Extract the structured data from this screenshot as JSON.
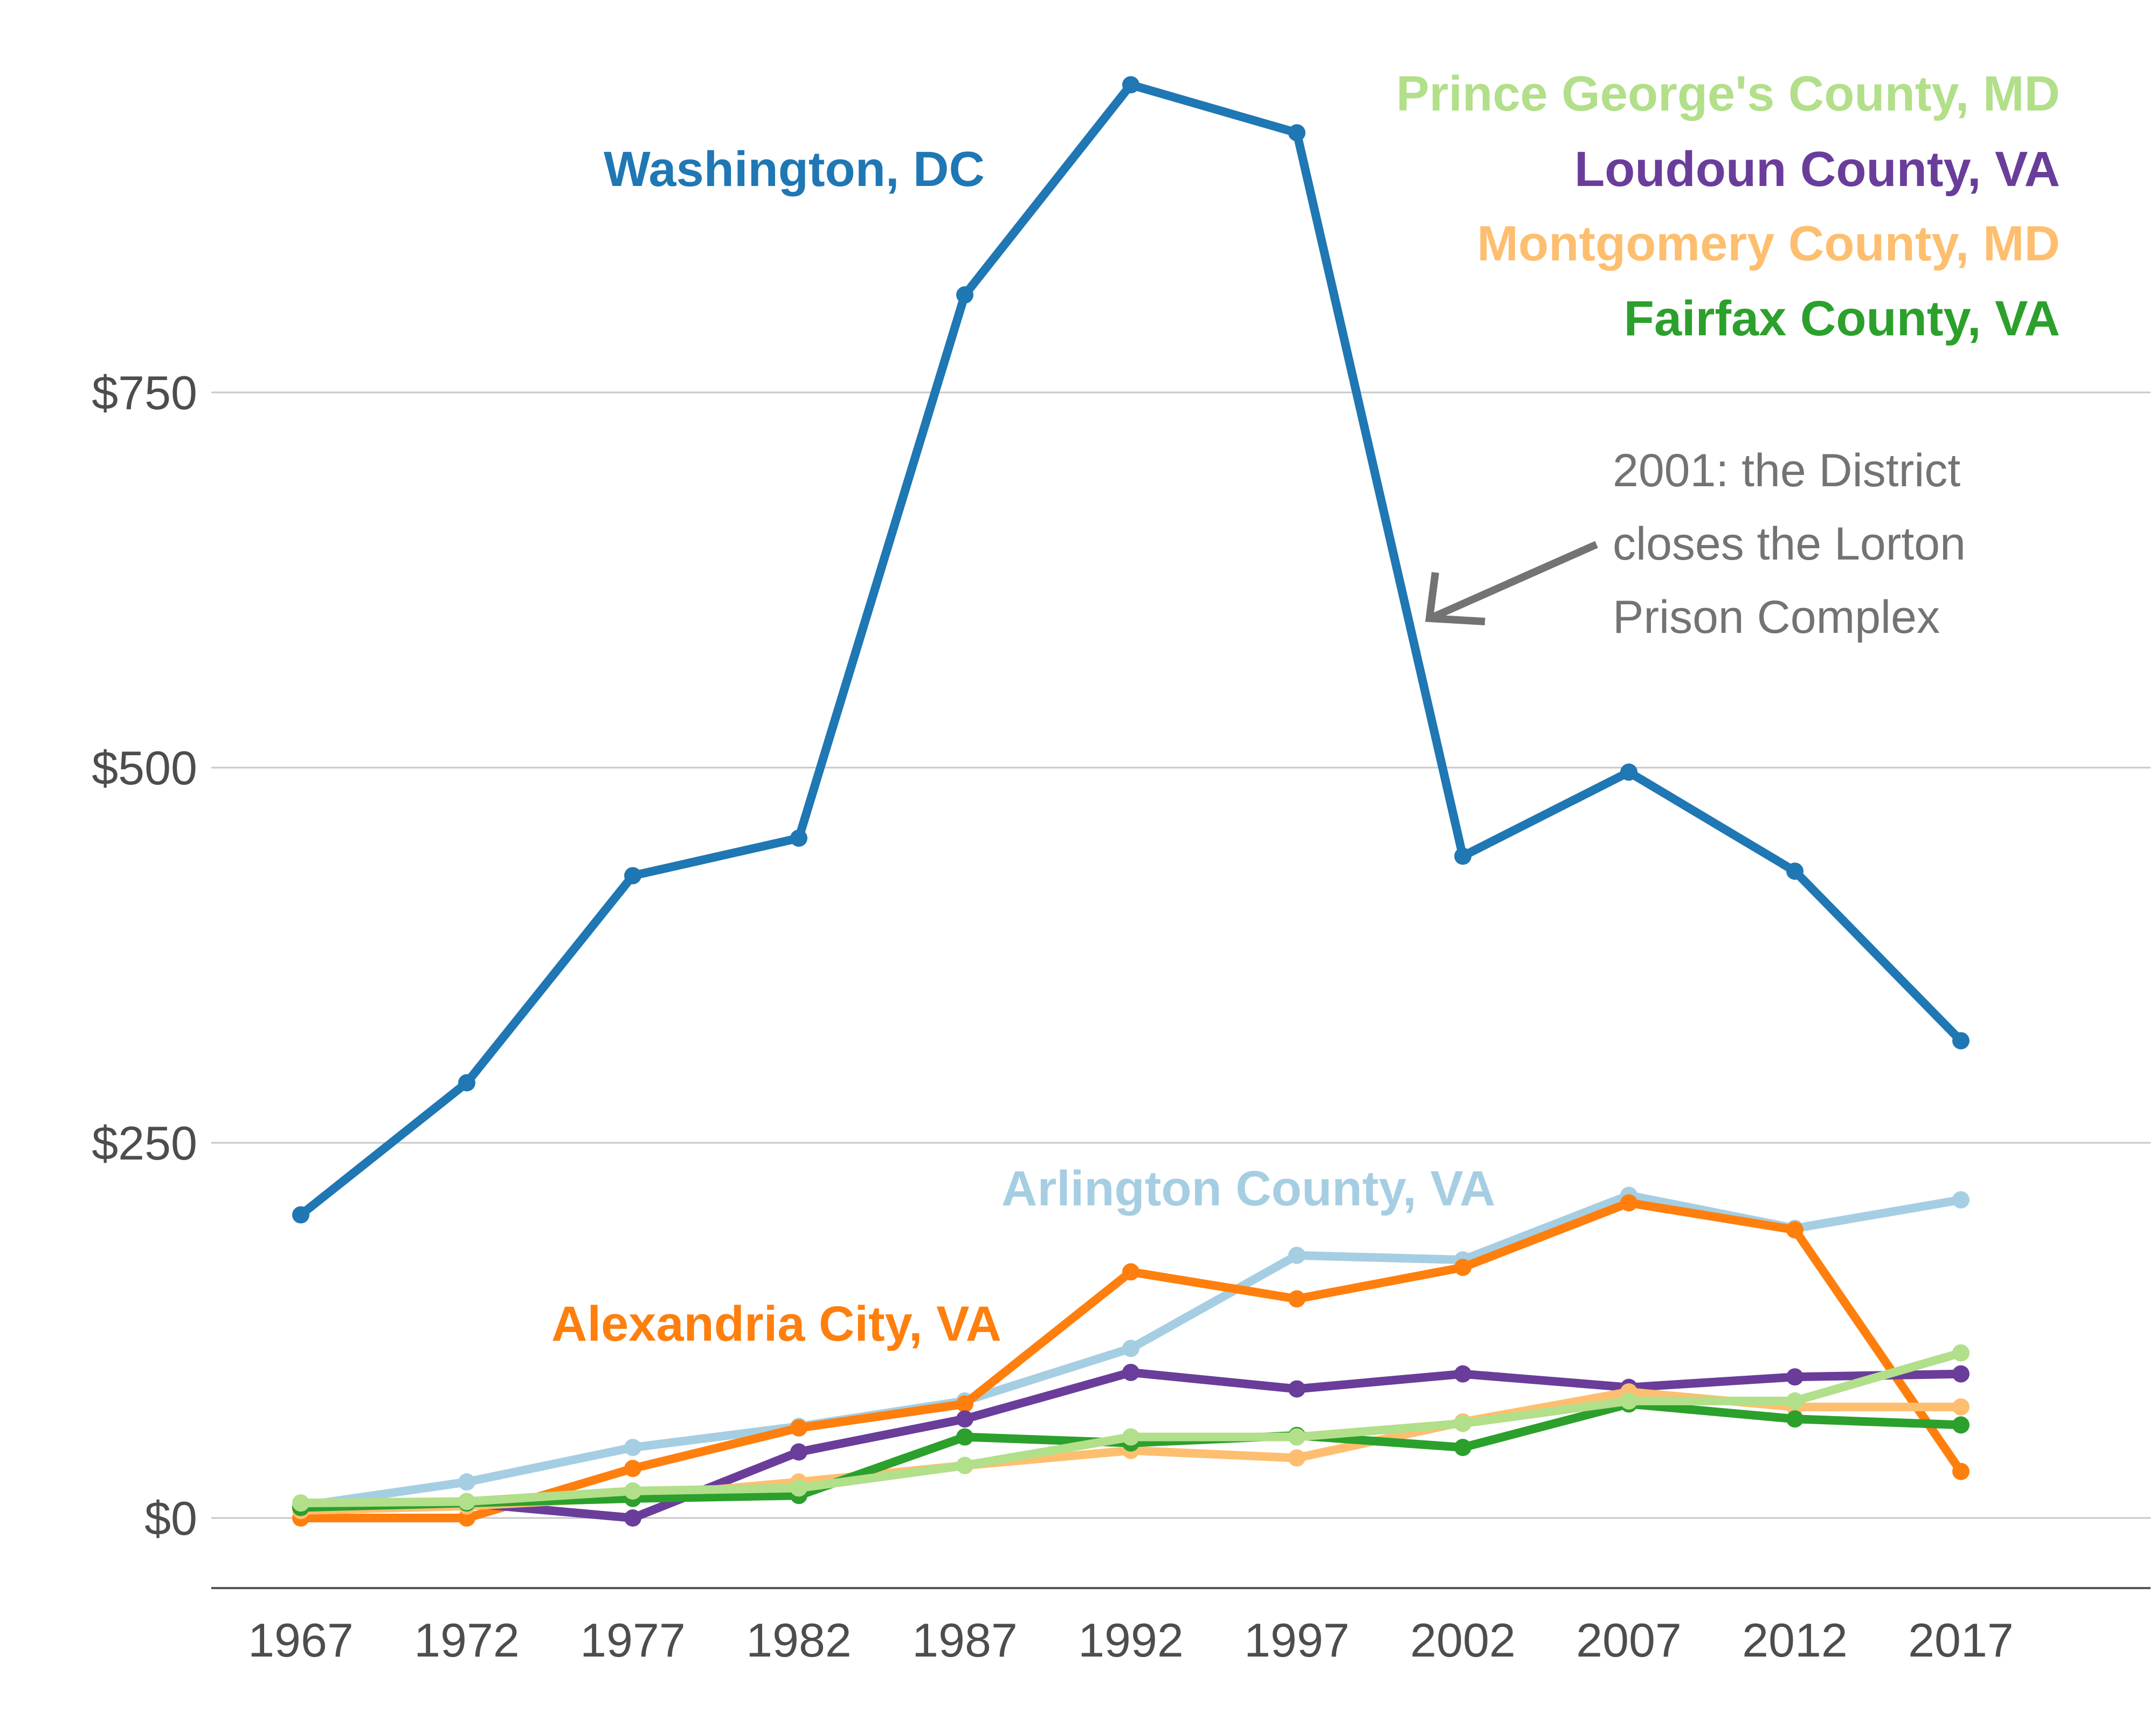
{
  "chart_data": {
    "type": "line",
    "title": "",
    "xlabel": "",
    "ylabel": "",
    "x": [
      1967,
      1972,
      1977,
      1982,
      1987,
      1992,
      1997,
      2002,
      2007,
      2012,
      2017
    ],
    "ylim": [
      -48,
      900
    ],
    "yticks": [
      0,
      250,
      500,
      750
    ],
    "ytick_labels": [
      "$0",
      "$250",
      "$500",
      "$750"
    ],
    "grid": true,
    "series": [
      {
        "name": "Washington, DC",
        "color": "#1f77b4",
        "values": [
          202,
          290,
          428,
          453,
          815,
          955,
          923,
          441,
          497,
          431,
          318
        ]
      },
      {
        "name": "Arlington County, VA",
        "color": "#a6cee3",
        "values": [
          8,
          24,
          47,
          61,
          78,
          113,
          175,
          172,
          215,
          193,
          212
        ]
      },
      {
        "name": "Alexandria City, VA",
        "color": "#ff7f0e",
        "values": [
          0,
          0,
          33,
          60,
          76,
          164,
          146,
          167,
          210,
          192,
          31
        ]
      },
      {
        "name": "Loudoun County, VA",
        "color": "#6a3d9a",
        "values": [
          7,
          10,
          0,
          44,
          66,
          97,
          86,
          96,
          87,
          94,
          96
        ]
      },
      {
        "name": "Montgomery County, MD",
        "color": "#fdbf6f",
        "values": [
          5,
          8,
          14,
          24,
          35,
          45,
          40,
          64,
          84,
          74,
          74
        ]
      },
      {
        "name": "Fairfax County, VA",
        "color": "#2ca02c",
        "values": [
          7,
          10,
          13,
          15,
          54,
          50,
          55,
          47,
          76,
          66,
          62
        ]
      },
      {
        "name": "Prince George's County, MD",
        "color": "#b2df8a",
        "values": [
          10,
          11,
          18,
          20,
          35,
          54,
          54,
          63,
          78,
          78,
          110
        ]
      }
    ],
    "legend": [
      {
        "name": "Prince George's County, MD",
        "color": "#b2df8a"
      },
      {
        "name": "Loudoun County, VA",
        "color": "#6a3d9a"
      },
      {
        "name": "Montgomery County, MD",
        "color": "#fdbf6f"
      },
      {
        "name": "Fairfax County, VA",
        "color": "#2ca02c"
      }
    ],
    "inline_labels": [
      {
        "name": "Washington, DC",
        "color": "#1f77b4"
      },
      {
        "name": "Arlington County, VA",
        "color": "#a6cee3"
      },
      {
        "name": "Alexandria City, VA",
        "color": "#ff7f0e"
      }
    ],
    "annotation": {
      "lines": [
        "2001: the District",
        "closes the Lorton",
        "Prison Complex"
      ],
      "target_year": 2000,
      "color": "#737373"
    }
  }
}
